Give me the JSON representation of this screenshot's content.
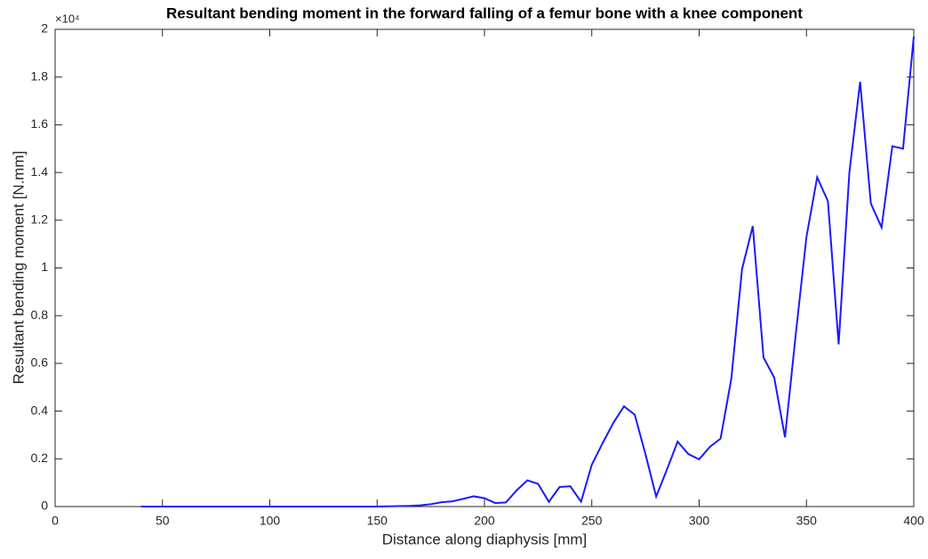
{
  "chart_data": {
    "type": "line",
    "title": "Resultant bending moment in the forward falling of a femur bone with a knee component",
    "x_label": "Distance along diaphysis [mm]",
    "y_label": "Resultant bending moment [N.mm]",
    "y_multiplier": "×10⁴",
    "x": [
      40,
      45,
      50,
      55,
      60,
      65,
      70,
      75,
      80,
      85,
      90,
      95,
      100,
      105,
      110,
      115,
      120,
      125,
      130,
      135,
      140,
      145,
      150,
      155,
      160,
      165,
      170,
      175,
      180,
      185,
      190,
      195,
      200,
      205,
      210,
      215,
      220,
      225,
      230,
      235,
      240,
      245,
      250,
      255,
      260,
      265,
      270,
      275,
      280,
      285,
      290,
      295,
      300,
      305,
      310,
      315,
      320,
      325,
      330,
      335,
      340,
      345,
      350,
      355,
      360,
      365,
      370,
      375,
      380,
      385,
      390,
      395,
      400
    ],
    "series": [
      {
        "name": "Resultant bending moment",
        "color": "#1a1aff",
        "values": [
          0,
          0,
          0,
          0,
          0,
          0,
          0,
          0,
          0,
          0,
          0,
          0,
          0,
          0,
          0,
          0,
          0,
          0,
          0,
          0,
          0,
          0,
          0,
          0.001,
          0.002,
          0.003,
          0.005,
          0.01,
          0.018,
          0.022,
          0.032,
          0.043,
          0.035,
          0.015,
          0.017,
          0.068,
          0.11,
          0.095,
          0.02,
          0.082,
          0.085,
          0.02,
          0.175,
          0.265,
          0.35,
          0.42,
          0.385,
          0.22,
          0.042,
          0.155,
          0.272,
          0.22,
          0.198,
          0.25,
          0.285,
          0.535,
          0.995,
          1.175,
          0.625,
          0.54,
          0.29,
          0.72,
          1.13,
          1.38,
          1.28,
          0.68,
          1.4,
          1.78,
          1.27,
          1.17,
          1.51,
          1.5,
          1.97
        ]
      }
    ],
    "xlim": [
      0,
      400
    ],
    "xticks": [
      0,
      50,
      100,
      150,
      200,
      250,
      300,
      350,
      400
    ],
    "ylim": [
      0,
      2
    ],
    "yticks": [
      0,
      0.2,
      0.4,
      0.6,
      0.8,
      1,
      1.2,
      1.4,
      1.6,
      1.8,
      2
    ]
  }
}
